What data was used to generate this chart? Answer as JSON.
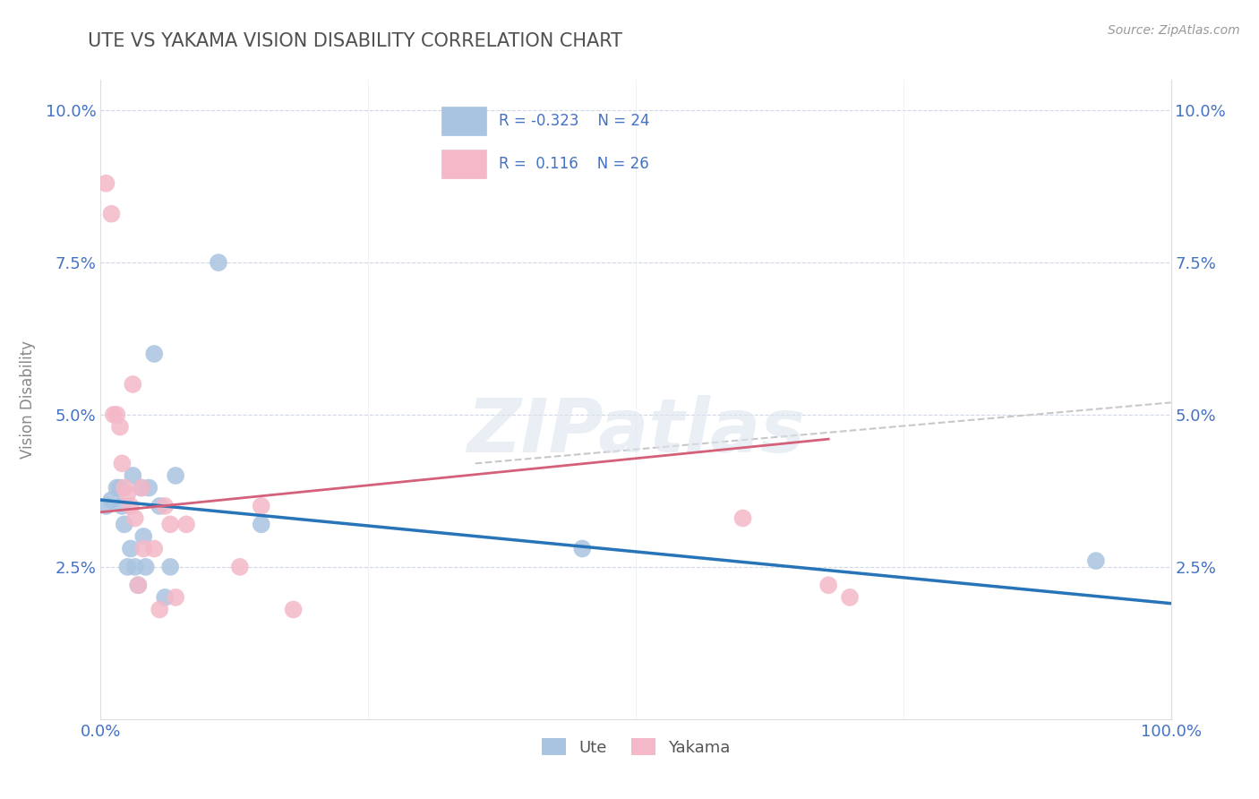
{
  "title": "UTE VS YAKAMA VISION DISABILITY CORRELATION CHART",
  "source": "Source: ZipAtlas.com",
  "ylabel": "Vision Disability",
  "xlim": [
    0.0,
    1.0
  ],
  "ylim": [
    0.0,
    0.105
  ],
  "xticks": [
    0.0,
    0.25,
    0.5,
    0.75,
    1.0
  ],
  "xticklabels": [
    "0.0%",
    "",
    "",
    "",
    "100.0%"
  ],
  "yticks": [
    0.0,
    0.025,
    0.05,
    0.075,
    0.1
  ],
  "yticklabels": [
    "",
    "2.5%",
    "5.0%",
    "7.5%",
    "10.0%"
  ],
  "ute_R": -0.323,
  "ute_N": 24,
  "yakama_R": 0.116,
  "yakama_N": 26,
  "ute_color": "#a8c4e0",
  "yakama_color": "#f4b8c8",
  "ute_line_color": "#2874b8",
  "yakama_line_color": "#d4607a",
  "dash_line_color": "#c8c8c8",
  "background_color": "#ffffff",
  "grid_color": "#d0d8e8",
  "title_color": "#505050",
  "axis_color": "#4472c4",
  "watermark": "ZIPatlas",
  "ute_points_x": [
    0.005,
    0.01,
    0.015,
    0.018,
    0.02,
    0.022,
    0.025,
    0.028,
    0.03,
    0.032,
    0.035,
    0.038,
    0.04,
    0.042,
    0.045,
    0.05,
    0.055,
    0.06,
    0.065,
    0.07,
    0.11,
    0.15,
    0.45,
    0.93
  ],
  "ute_points_y": [
    0.035,
    0.036,
    0.038,
    0.038,
    0.035,
    0.032,
    0.025,
    0.028,
    0.04,
    0.025,
    0.022,
    0.038,
    0.03,
    0.025,
    0.038,
    0.06,
    0.035,
    0.02,
    0.025,
    0.04,
    0.075,
    0.032,
    0.028,
    0.026
  ],
  "yakama_points_x": [
    0.005,
    0.01,
    0.012,
    0.015,
    0.018,
    0.02,
    0.022,
    0.025,
    0.028,
    0.03,
    0.032,
    0.035,
    0.038,
    0.04,
    0.05,
    0.055,
    0.06,
    0.065,
    0.07,
    0.08,
    0.13,
    0.15,
    0.18,
    0.6,
    0.68,
    0.7
  ],
  "yakama_points_y": [
    0.088,
    0.083,
    0.05,
    0.05,
    0.048,
    0.042,
    0.038,
    0.037,
    0.035,
    0.055,
    0.033,
    0.022,
    0.038,
    0.028,
    0.028,
    0.018,
    0.035,
    0.032,
    0.02,
    0.032,
    0.025,
    0.035,
    0.018,
    0.033,
    0.022,
    0.02
  ],
  "ute_trend_x": [
    0.0,
    1.0
  ],
  "ute_trend_y": [
    0.036,
    0.019
  ],
  "yakama_trend_x": [
    0.0,
    0.68
  ],
  "yakama_trend_y": [
    0.034,
    0.046
  ],
  "dash_trend_x": [
    0.35,
    1.0
  ],
  "dash_trend_y": [
    0.042,
    0.052
  ]
}
